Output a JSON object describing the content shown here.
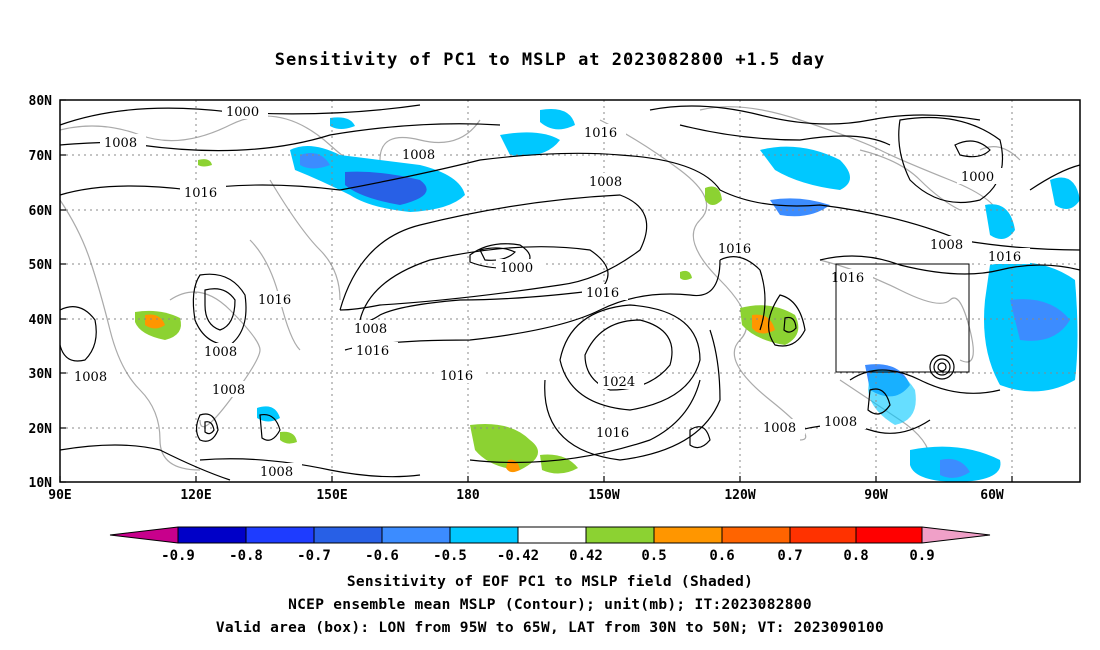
{
  "title": "Sensitivity of PC1 to MSLP at 2023082800 +1.5 day",
  "map": {
    "lat_labels": [
      "80N",
      "70N",
      "60N",
      "50N",
      "40N",
      "30N",
      "20N",
      "10N"
    ],
    "lon_labels": [
      "90E",
      "120E",
      "150E",
      "180",
      "150W",
      "120W",
      "90W",
      "60W"
    ],
    "contour_labels": [
      "1000",
      "1008",
      "1008",
      "1016",
      "1016",
      "1008",
      "1000",
      "1008",
      "1016",
      "1008",
      "1016",
      "1016",
      "1008",
      "1008",
      "1024",
      "1016",
      "1016",
      "1016",
      "1008",
      "1008",
      "1008",
      "1000",
      "1008",
      "1016",
      "1016",
      "1008"
    ],
    "valid_box": {
      "lon_range": [
        "95W",
        "65W"
      ],
      "lat_range": [
        "30N",
        "50N"
      ]
    }
  },
  "colorbar": {
    "labels": [
      "-0.9",
      "-0.8",
      "-0.7",
      "-0.6",
      "-0.5",
      "-0.42",
      "0.42",
      "0.5",
      "0.6",
      "0.7",
      "0.8",
      "0.9"
    ],
    "colors": [
      "#c8008c",
      "#0000c8",
      "#1e3cff",
      "#2860e6",
      "#3c8cff",
      "#00c8ff",
      "#ffffff",
      "#8cd232",
      "#ff9600",
      "#ff6400",
      "#ff3200",
      "#ff0000",
      "#f0a0c8"
    ]
  },
  "captions": {
    "line1": "Sensitivity of EOF PC1 to MSLP field (Shaded)",
    "line2": "NCEP ensemble mean MSLP (Contour); unit(mb); IT:2023082800",
    "line3": "Valid area (box): LON from 95W to 65W, LAT from 30N to 50N; VT: 2023090100"
  }
}
